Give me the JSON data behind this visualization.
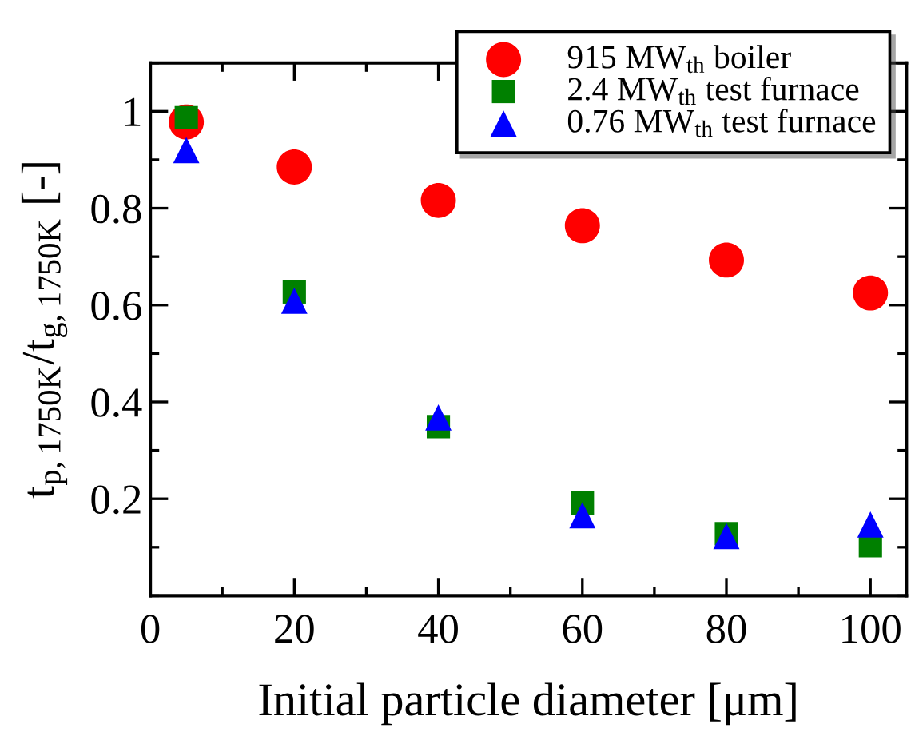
{
  "chart_data": {
    "type": "scatter",
    "xlabel": "Initial particle diameter [μm]",
    "ylabel": "t$_{p,1750K}$/t$_{g,1750K}$ [-]",
    "xlim": [
      0,
      105
    ],
    "ylim": [
      0,
      1.1
    ],
    "xticks": [
      0,
      20,
      40,
      60,
      80,
      100
    ],
    "yticks": [
      0.2,
      0.4,
      0.6,
      0.8,
      1
    ],
    "grid": false,
    "legend": "top right",
    "series": [
      {
        "name": "915 MW$_{th}$ boiler",
        "color": "#ff0000",
        "marker": "circle",
        "x": [
          5,
          20,
          40,
          60,
          80,
          100
        ],
        "values": [
          0.978,
          0.885,
          0.816,
          0.764,
          0.693,
          0.625
        ]
      },
      {
        "name": "2.4 MW$_{th}$ test furnace",
        "color": "#008000",
        "marker": "square",
        "x": [
          5,
          20,
          40,
          60,
          80,
          100
        ],
        "values": [
          0.987,
          0.627,
          0.349,
          0.191,
          0.128,
          0.103
        ]
      },
      {
        "name": "0.76 MW$_{th}$ test furnace",
        "color": "#0000ff",
        "marker": "triangle",
        "x": [
          5,
          20,
          40,
          60,
          80,
          100
        ],
        "values": [
          0.92,
          0.609,
          0.368,
          0.166,
          0.123,
          0.147
        ]
      }
    ]
  }
}
